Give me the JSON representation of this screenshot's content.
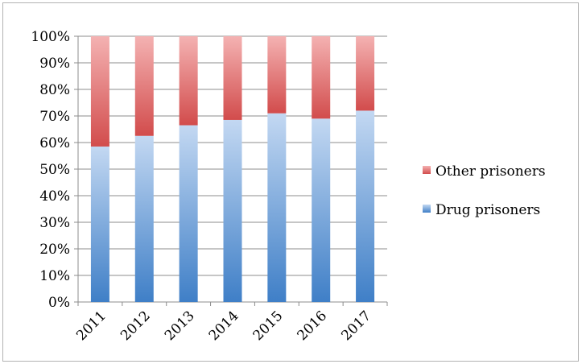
{
  "chart_data": {
    "type": "bar",
    "stacked": true,
    "percent": true,
    "categories": [
      "2011",
      "2012",
      "2013",
      "2014",
      "2015",
      "2016",
      "2017"
    ],
    "series": [
      {
        "name": "Drug prisoners",
        "values": [
          58.5,
          62.5,
          66.5,
          68.5,
          71,
          69,
          72
        ],
        "color": "#5a8fcf"
      },
      {
        "name": "Other prisoners",
        "values": [
          41.5,
          37.5,
          33.5,
          31.5,
          29,
          31,
          28
        ],
        "color": "#d95c5c"
      }
    ],
    "ylim": [
      0,
      100
    ],
    "yticks": [
      "0%",
      "10%",
      "20%",
      "30%",
      "40%",
      "50%",
      "60%",
      "70%",
      "80%",
      "90%",
      "100%"
    ],
    "grid": true,
    "legend": {
      "position": "right",
      "entries": [
        "Other prisoners",
        "Drug prisoners"
      ]
    }
  }
}
